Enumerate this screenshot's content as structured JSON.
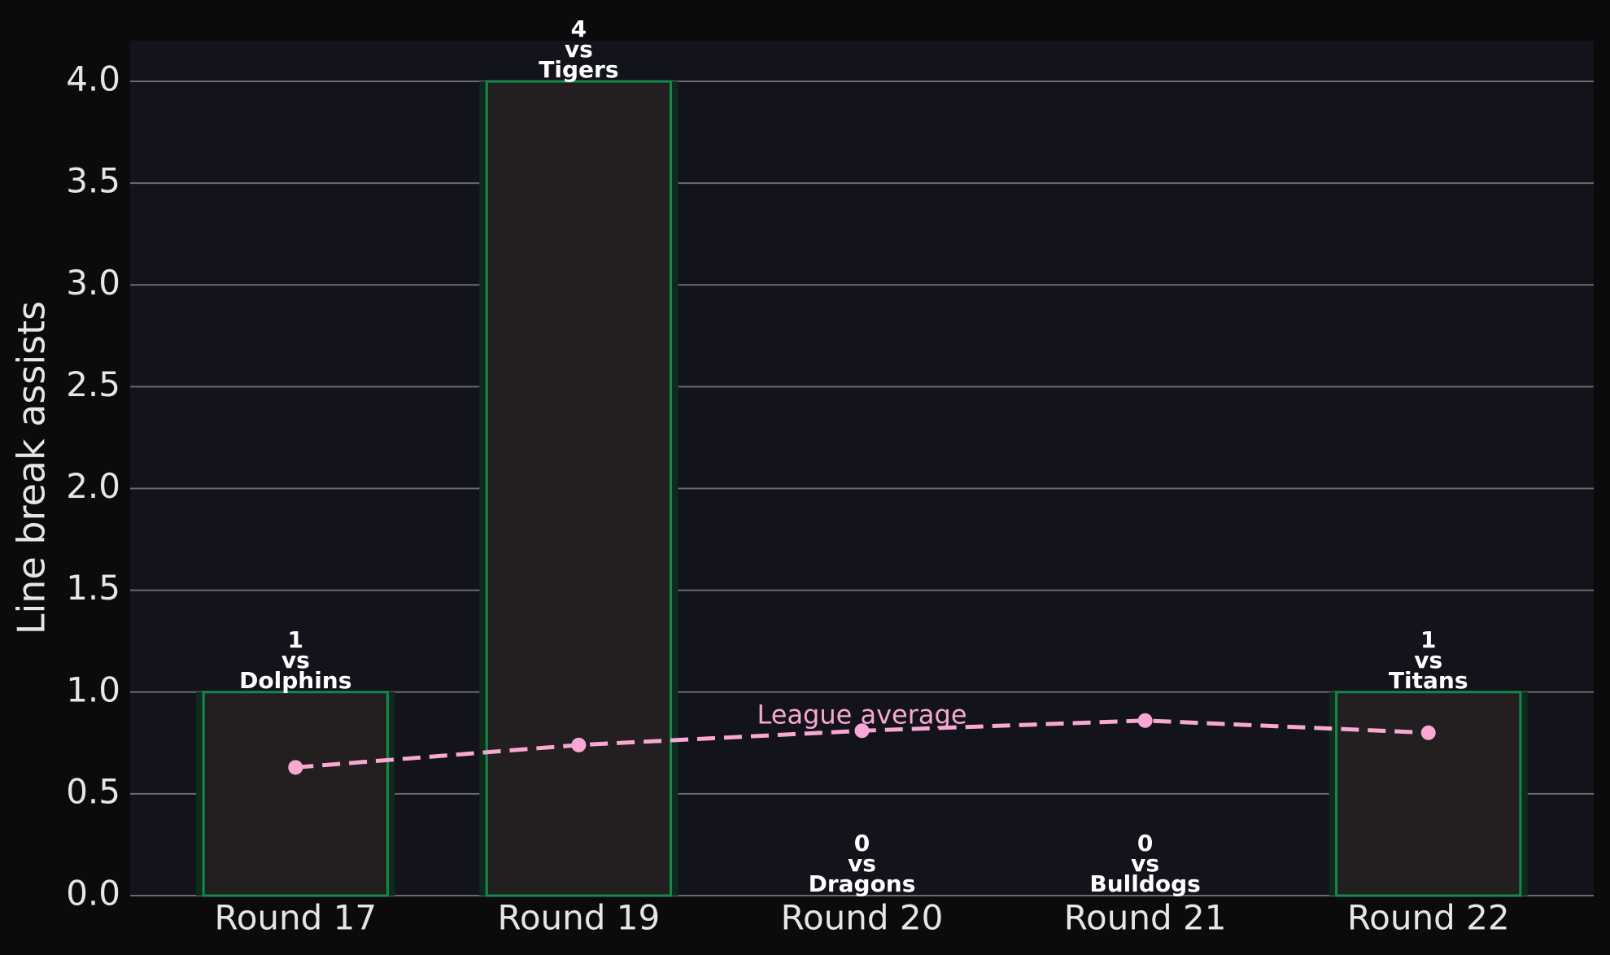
{
  "chart_data": {
    "type": "bar",
    "y_label": "Line break assists",
    "categories": [
      "Round 17",
      "Round 19",
      "Round 20",
      "Round 21",
      "Round 22"
    ],
    "values": [
      1,
      4,
      0,
      0,
      1
    ],
    "color": "#231f20",
    "edge_color": "#138a4b",
    "opponents": [
      "Dolphins",
      "Tigers",
      "Dragons",
      "Bulldogs",
      "Titans"
    ],
    "versus": "vs",
    "line": {
      "type": "line",
      "name": "League average",
      "color": "#f9a8d4",
      "values": [
        0.63,
        0.74,
        0.81,
        0.86,
        0.8
      ]
    },
    "ylim": [
      0,
      4.2
    ],
    "yticks": [
      {
        "value": 0,
        "label": "0.0"
      },
      {
        "value": 0.5,
        "label": "0.5"
      },
      {
        "value": 1,
        "label": "1.0"
      },
      {
        "value": 1.5,
        "label": "1.5"
      },
      {
        "value": 2,
        "label": "2.0"
      },
      {
        "value": 2.5,
        "label": "2.5"
      },
      {
        "value": 3,
        "label": "3.0"
      },
      {
        "value": 3.5,
        "label": "3.5"
      },
      {
        "value": 4,
        "label": "4.0"
      }
    ],
    "grid": true
  }
}
